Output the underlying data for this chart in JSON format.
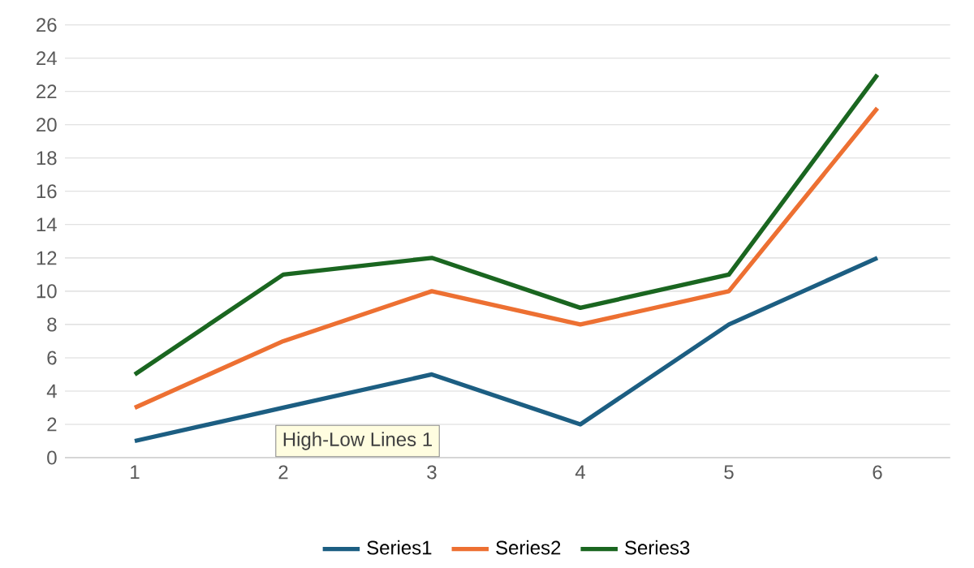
{
  "chart_data": {
    "type": "line",
    "categories": [
      "1",
      "2",
      "3",
      "4",
      "5",
      "6"
    ],
    "series": [
      {
        "name": "Series1",
        "color": "#1c5e82",
        "values": [
          1,
          3,
          5,
          2,
          8,
          12
        ]
      },
      {
        "name": "Series2",
        "color": "#ed7032",
        "values": [
          3,
          7,
          10,
          8,
          10,
          21
        ]
      },
      {
        "name": "Series3",
        "color": "#1a6620",
        "values": [
          5,
          11,
          12,
          9,
          11,
          23
        ]
      }
    ],
    "ylim": [
      0,
      26
    ],
    "yticks": [
      0,
      2,
      4,
      6,
      8,
      10,
      12,
      14,
      16,
      18,
      20,
      22,
      24,
      26
    ],
    "grid": "y",
    "legend": "bottom",
    "marker": "none",
    "line_style": "solid",
    "annotations": [
      "High-Low Lines 1"
    ]
  }
}
